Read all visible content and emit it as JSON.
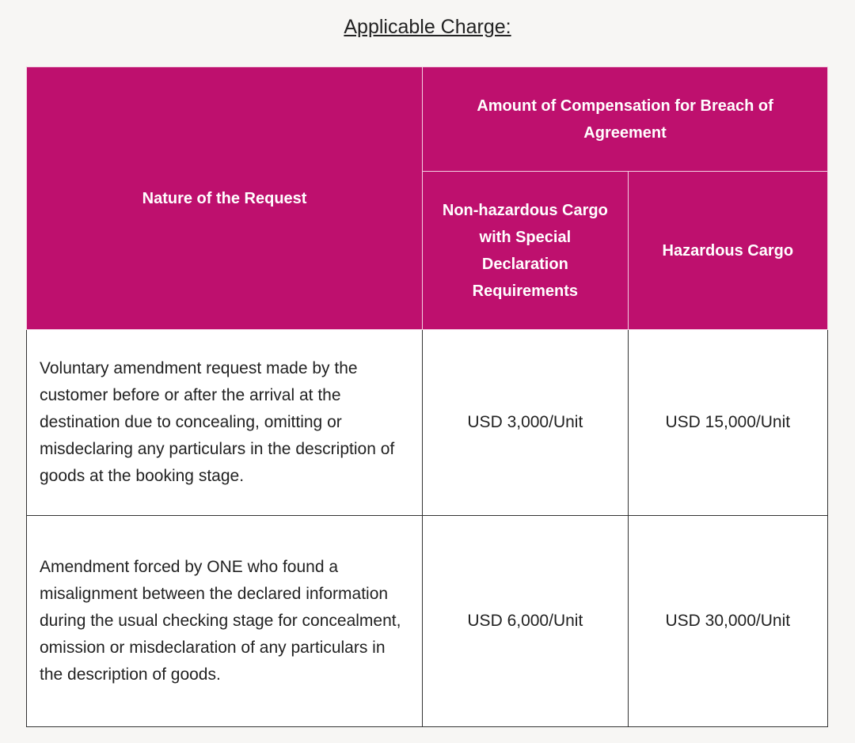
{
  "title": "Applicable Charge:",
  "colors": {
    "header_bg": "#be106e",
    "page_bg": "#f7f6f4"
  },
  "table": {
    "headers": {
      "nature": "Nature of the Request",
      "amount": "Amount of Compensation for Breach of Agreement",
      "non_hazardous": "Non-hazardous Cargo with Special Declaration Requirements",
      "hazardous": "Hazardous Cargo"
    },
    "rows": [
      {
        "nature": "Voluntary amendment request made by the customer before or after the arrival at the destination due to concealing, omitting or misdeclaring any particulars in the description of goods at the booking stage.",
        "non_hazardous": "USD 3,000/Unit",
        "hazardous": "USD 15,000/Unit"
      },
      {
        "nature": "Amendment forced by ONE who found a misalignment between the declared information during the usual checking stage for concealment, omission or misdeclaration of any particulars in the description of goods.",
        "non_hazardous": "USD 6,000/Unit",
        "hazardous": "USD 30,000/Unit"
      }
    ]
  }
}
